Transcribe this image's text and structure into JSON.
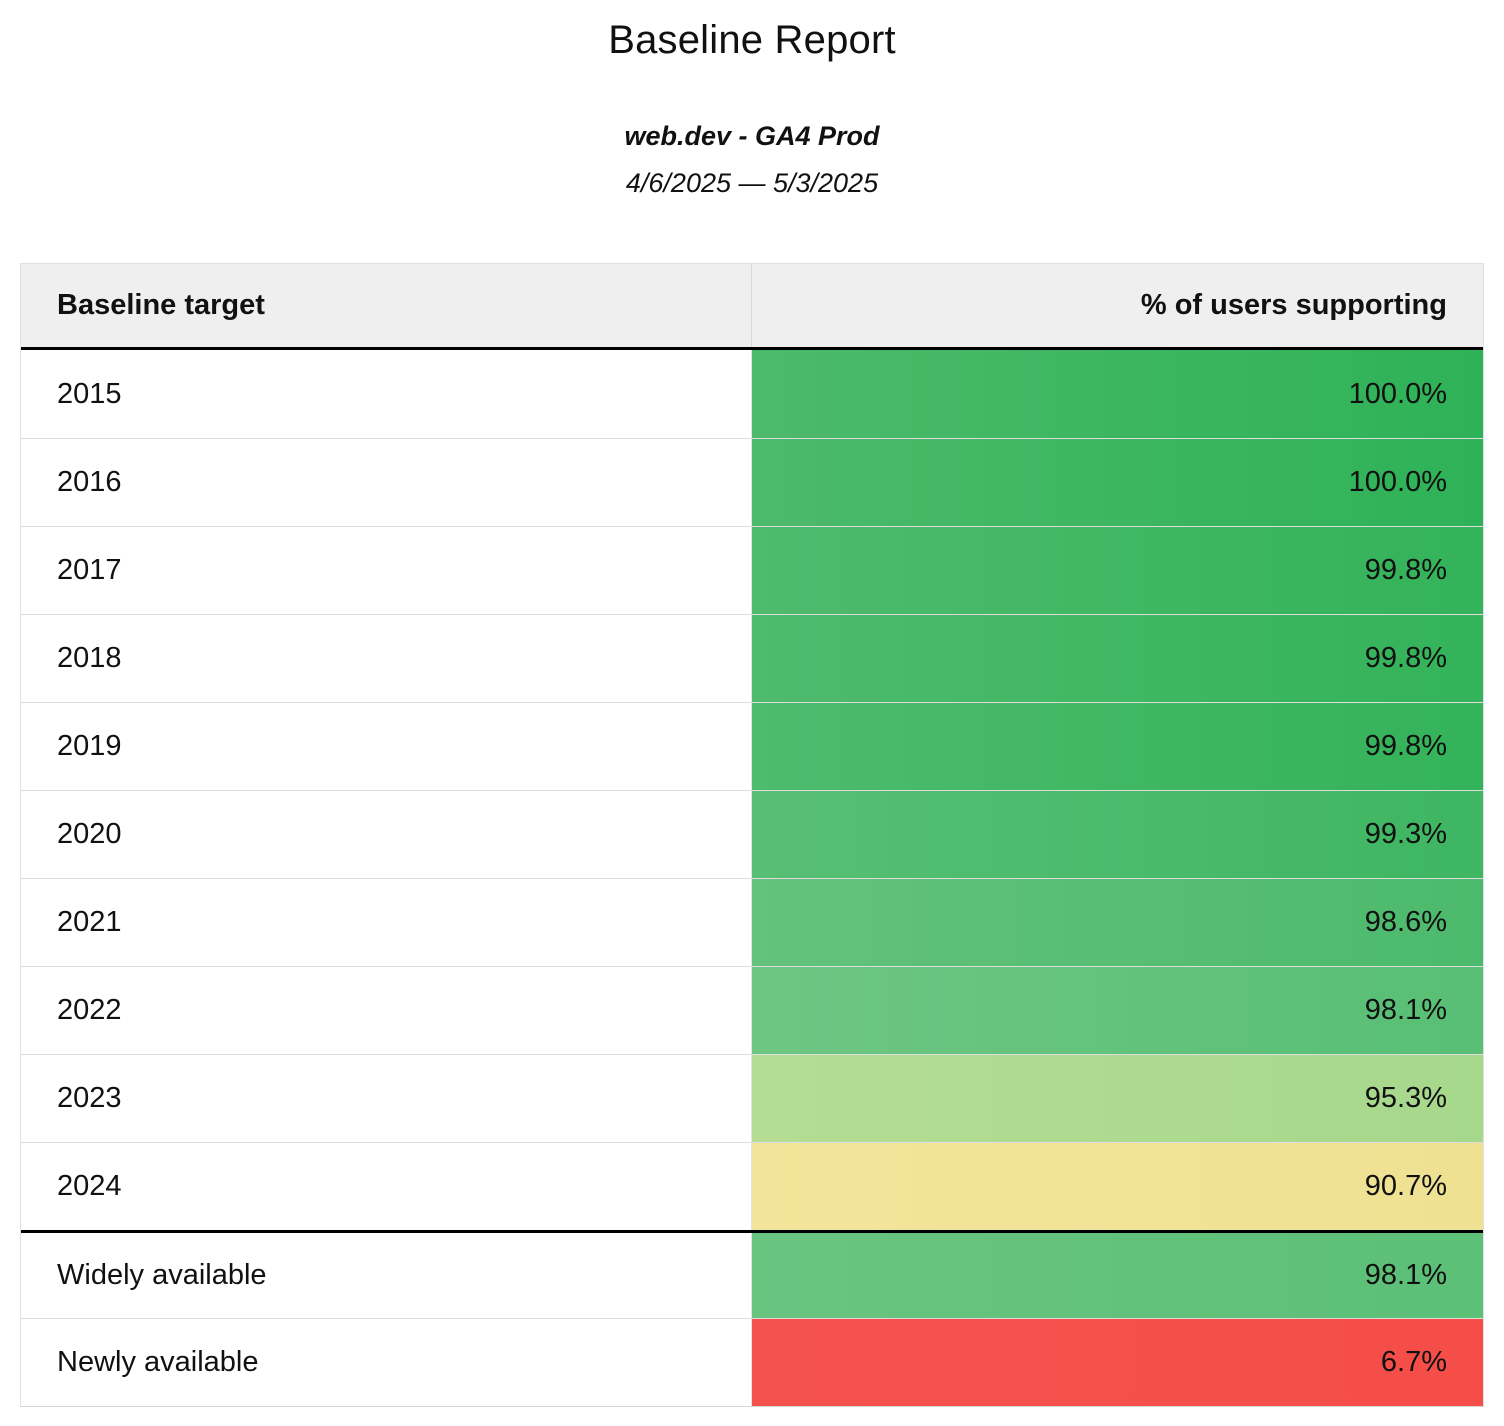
{
  "report": {
    "title": "Baseline Report",
    "subtitle": "web.dev - GA4 Prod",
    "date_range": "4/6/2025 — 5/3/2025"
  },
  "table": {
    "columns": [
      "Baseline target",
      "% of users supporting"
    ],
    "rows": [
      {
        "label": "2015",
        "value": "100.0%",
        "color_from": "#4cba6b",
        "color_to": "#2eb257",
        "thick_top": false
      },
      {
        "label": "2016",
        "value": "100.0%",
        "color_from": "#4cba6b",
        "color_to": "#2eb257",
        "thick_top": false
      },
      {
        "label": "2017",
        "value": "99.8%",
        "color_from": "#4ebb6d",
        "color_to": "#33b35a",
        "thick_top": false
      },
      {
        "label": "2018",
        "value": "99.8%",
        "color_from": "#4ebb6d",
        "color_to": "#33b35a",
        "thick_top": false
      },
      {
        "label": "2019",
        "value": "99.8%",
        "color_from": "#4ebb6d",
        "color_to": "#33b35a",
        "thick_top": false
      },
      {
        "label": "2020",
        "value": "99.3%",
        "color_from": "#57bf75",
        "color_to": "#3eb662",
        "thick_top": false
      },
      {
        "label": "2021",
        "value": "98.6%",
        "color_from": "#63c27c",
        "color_to": "#4cba6c",
        "thick_top": false
      },
      {
        "label": "2022",
        "value": "98.1%",
        "color_from": "#6ec683",
        "color_to": "#58bf75",
        "thick_top": false
      },
      {
        "label": "2023",
        "value": "95.3%",
        "color_from": "#b4dd93",
        "color_to": "#a6d88c",
        "thick_top": false
      },
      {
        "label": "2024",
        "value": "90.7%",
        "color_from": "#f2e59b",
        "color_to": "#efe192",
        "thick_top": false
      },
      {
        "label": "Widely available",
        "value": "98.1%",
        "color_from": "#69c480",
        "color_to": "#5cc077",
        "thick_top": true
      },
      {
        "label": "Newly available",
        "value": "6.7%",
        "color_from": "#f5514c",
        "color_to": "#f54e49",
        "thick_top": false
      }
    ]
  },
  "chart_data": {
    "type": "table",
    "title": "Baseline Report",
    "subtitle": "web.dev - GA4 Prod",
    "date_range": "4/6/2025 — 5/3/2025",
    "columns": [
      "Baseline target",
      "% of users supporting"
    ],
    "rows": [
      [
        "2015",
        100.0
      ],
      [
        "2016",
        100.0
      ],
      [
        "2017",
        99.8
      ],
      [
        "2018",
        99.8
      ],
      [
        "2019",
        99.8
      ],
      [
        "2020",
        99.3
      ],
      [
        "2021",
        98.6
      ],
      [
        "2022",
        98.1
      ],
      [
        "2023",
        95.3
      ],
      [
        "2024",
        90.7
      ],
      [
        "Widely available",
        98.1
      ],
      [
        "Newly available",
        6.7
      ]
    ],
    "layout_hints": {
      "value_column_coloring": "heatmap from green (high %) through yellow to red (low %)",
      "section_break_after_row": "2024",
      "value_alignment": "right",
      "label_alignment": "left"
    }
  }
}
